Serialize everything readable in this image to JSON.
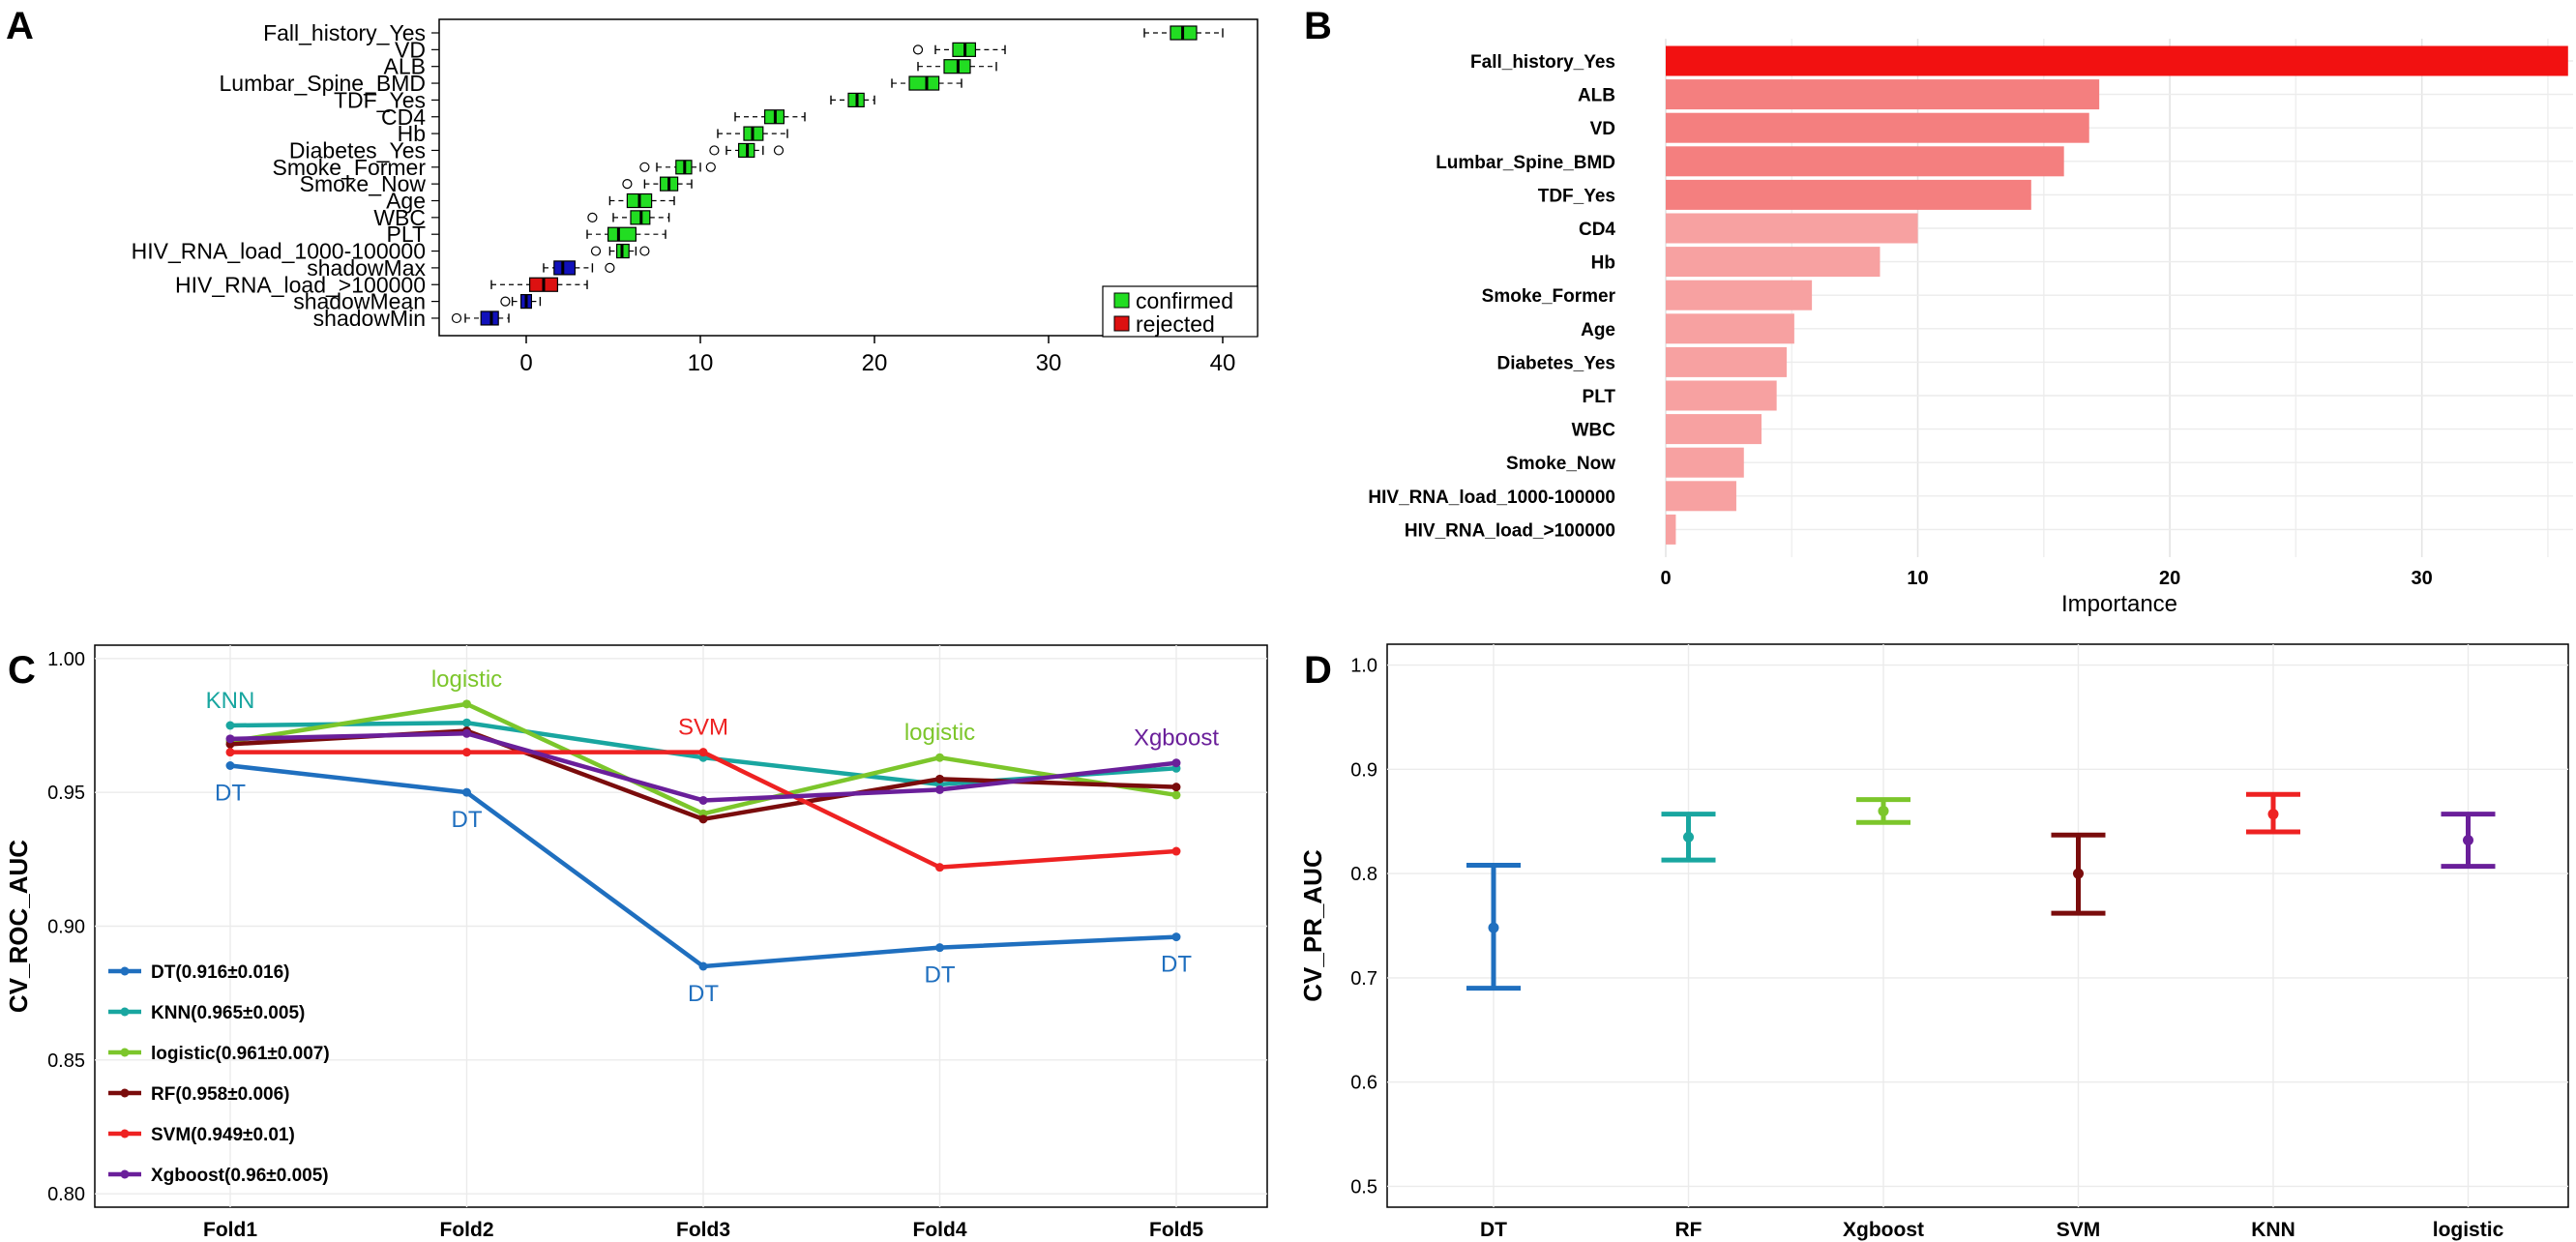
{
  "chart_data": [
    {
      "panel": "A",
      "type": "boxplot",
      "xlim": [
        -5,
        42
      ],
      "xticks": [
        0,
        10,
        20,
        30,
        40
      ],
      "features": [
        {
          "name": "Fall_history_Yes",
          "status": "confirmed",
          "min": 35.5,
          "q1": 37.0,
          "median": 37.7,
          "q3": 38.5,
          "max": 40.0,
          "outliers": []
        },
        {
          "name": "VD",
          "status": "confirmed",
          "min": 23.5,
          "q1": 24.5,
          "median": 25.2,
          "q3": 25.8,
          "max": 27.5,
          "outliers": [
            22.5
          ]
        },
        {
          "name": "ALB",
          "status": "confirmed",
          "min": 22.5,
          "q1": 24.0,
          "median": 24.8,
          "q3": 25.5,
          "max": 27.0,
          "outliers": []
        },
        {
          "name": "Lumbar_Spine_BMD",
          "status": "confirmed",
          "min": 21.0,
          "q1": 22.0,
          "median": 23.0,
          "q3": 23.7,
          "max": 25.0,
          "outliers": []
        },
        {
          "name": "TDF_Yes",
          "status": "confirmed",
          "min": 17.5,
          "q1": 18.5,
          "median": 19.0,
          "q3": 19.4,
          "max": 20.0,
          "outliers": []
        },
        {
          "name": "CD4",
          "status": "confirmed",
          "min": 12.0,
          "q1": 13.7,
          "median": 14.3,
          "q3": 14.8,
          "max": 16.0,
          "outliers": []
        },
        {
          "name": "Hb",
          "status": "confirmed",
          "min": 11.0,
          "q1": 12.5,
          "median": 13.0,
          "q3": 13.6,
          "max": 15.0,
          "outliers": []
        },
        {
          "name": "Diabetes_Yes",
          "status": "confirmed",
          "min": 11.5,
          "q1": 12.2,
          "median": 12.7,
          "q3": 13.1,
          "max": 13.6,
          "outliers": [
            10.8,
            14.5
          ]
        },
        {
          "name": "Smoke_Former",
          "status": "confirmed",
          "min": 7.5,
          "q1": 8.6,
          "median": 9.1,
          "q3": 9.5,
          "max": 10.0,
          "outliers": [
            6.8,
            10.6
          ]
        },
        {
          "name": "Smoke_Now",
          "status": "confirmed",
          "min": 6.8,
          "q1": 7.7,
          "median": 8.2,
          "q3": 8.7,
          "max": 9.5,
          "outliers": [
            5.8
          ]
        },
        {
          "name": "Age",
          "status": "confirmed",
          "min": 4.8,
          "q1": 5.8,
          "median": 6.5,
          "q3": 7.2,
          "max": 8.5,
          "outliers": []
        },
        {
          "name": "WBC",
          "status": "confirmed",
          "min": 5.0,
          "q1": 6.0,
          "median": 6.6,
          "q3": 7.1,
          "max": 8.2,
          "outliers": [
            3.8
          ]
        },
        {
          "name": "PLT",
          "status": "confirmed",
          "min": 3.5,
          "q1": 4.7,
          "median": 5.3,
          "q3": 6.3,
          "max": 8.0,
          "outliers": []
        },
        {
          "name": "HIV_RNA_load_1000-100000",
          "status": "confirmed",
          "min": 4.8,
          "q1": 5.2,
          "median": 5.5,
          "q3": 5.9,
          "max": 6.3,
          "outliers": [
            4.0,
            6.8
          ]
        },
        {
          "name": "shadowMax",
          "status": "shadow",
          "min": 1.0,
          "q1": 1.6,
          "median": 2.1,
          "q3": 2.8,
          "max": 3.8,
          "outliers": [
            4.8
          ]
        },
        {
          "name": "HIV_RNA_load_>100000",
          "status": "rejected",
          "min": -2.0,
          "q1": 0.2,
          "median": 1.0,
          "q3": 1.8,
          "max": 3.5,
          "outliers": []
        },
        {
          "name": "shadowMean",
          "status": "shadow",
          "min": -0.8,
          "q1": -0.3,
          "median": 0.0,
          "q3": 0.3,
          "max": 0.8,
          "outliers": [
            -1.2
          ]
        },
        {
          "name": "shadowMin",
          "status": "shadow",
          "min": -3.5,
          "q1": -2.6,
          "median": -2.0,
          "q3": -1.6,
          "max": -1.0,
          "outliers": [
            -4.0
          ]
        }
      ],
      "legend": [
        "confirmed",
        "rejected"
      ],
      "colors": {
        "confirmed": "#22dd22",
        "rejected": "#dd1111",
        "shadow": "#1111bb"
      }
    },
    {
      "panel": "B",
      "type": "bar",
      "orientation": "horizontal",
      "xlabel": "Importance",
      "xlim": [
        0,
        36
      ],
      "xticks": [
        0,
        10,
        20,
        30
      ],
      "categories": [
        "Fall_history_Yes",
        "ALB",
        "VD",
        "Lumbar_Spine_BMD",
        "TDF_Yes",
        "CD4",
        "Hb",
        "Smoke_Former",
        "Age",
        "Diabetes_Yes",
        "PLT",
        "WBC",
        "Smoke_Now",
        "HIV_RNA_load_1000-100000",
        "HIV_RNA_load_>100000"
      ],
      "values": [
        35.8,
        17.2,
        16.8,
        15.8,
        14.5,
        10.0,
        8.5,
        5.8,
        5.1,
        4.8,
        4.4,
        3.8,
        3.1,
        2.8,
        0.4
      ],
      "colors": [
        "#f21111",
        "#f47f7f",
        "#f47f7f",
        "#f47f7f",
        "#f47f7f",
        "#f7a1a1",
        "#f7a1a1",
        "#f7a1a1",
        "#f7a1a1",
        "#f7a1a1",
        "#f7a1a1",
        "#f7a1a1",
        "#f7a1a1",
        "#f7a1a1",
        "#f7a1a1"
      ]
    },
    {
      "panel": "C",
      "type": "line",
      "ylabel": "CV_ROC_AUC",
      "ylim": [
        0.795,
        1.005
      ],
      "yticks": [
        "0.80",
        "0.85",
        "0.90",
        "0.95",
        "1.00"
      ],
      "categories": [
        "Fold1",
        "Fold2",
        "Fold3",
        "Fold4",
        "Fold5"
      ],
      "series": [
        {
          "name": "DT",
          "legend": "DT(0.916±0.016)",
          "color": "#1f6fbf",
          "values": [
            0.96,
            0.95,
            0.885,
            0.892,
            0.896
          ]
        },
        {
          "name": "KNN",
          "legend": "KNN(0.965±0.005)",
          "color": "#19a6a0",
          "values": [
            0.975,
            0.976,
            0.963,
            0.953,
            0.959
          ]
        },
        {
          "name": "logistic",
          "legend": "logistic(0.961±0.007)",
          "color": "#7cc62b",
          "values": [
            0.969,
            0.983,
            0.942,
            0.963,
            0.949
          ]
        },
        {
          "name": "RF",
          "legend": "RF(0.958±0.006)",
          "color": "#7a0c0c",
          "values": [
            0.968,
            0.973,
            0.94,
            0.955,
            0.952
          ]
        },
        {
          "name": "SVM",
          "legend": "SVM(0.949±0.01)",
          "color": "#ee2222",
          "values": [
            0.965,
            0.965,
            0.965,
            0.922,
            0.928
          ]
        },
        {
          "name": "Xgboost",
          "legend": "Xgboost(0.96±0.005)",
          "color": "#6a1f9a",
          "values": [
            0.97,
            0.972,
            0.947,
            0.951,
            0.961
          ]
        }
      ],
      "annotations": [
        {
          "text": "KNN",
          "series": "KNN",
          "fold": 0,
          "pos": "above"
        },
        {
          "text": "logistic",
          "series": "logistic",
          "fold": 1,
          "pos": "above"
        },
        {
          "text": "SVM",
          "series": "SVM",
          "fold": 2,
          "pos": "above"
        },
        {
          "text": "logistic",
          "series": "logistic",
          "fold": 3,
          "pos": "above"
        },
        {
          "text": "Xgboost",
          "series": "Xgboost",
          "fold": 4,
          "pos": "above"
        },
        {
          "text": "DT",
          "series": "DT",
          "fold": 0,
          "pos": "below"
        },
        {
          "text": "DT",
          "series": "DT",
          "fold": 1,
          "pos": "below"
        },
        {
          "text": "DT",
          "series": "DT",
          "fold": 2,
          "pos": "below"
        },
        {
          "text": "DT",
          "series": "DT",
          "fold": 3,
          "pos": "below"
        },
        {
          "text": "DT",
          "series": "DT",
          "fold": 4,
          "pos": "below"
        }
      ]
    },
    {
      "panel": "D",
      "type": "errorbar",
      "ylabel": "CV_PR_AUC",
      "ylim": [
        0.48,
        1.02
      ],
      "yticks": [
        "0.5",
        "0.6",
        "0.7",
        "0.8",
        "0.9",
        "1.0"
      ],
      "categories": [
        "DT",
        "RF",
        "Xgboost",
        "SVM",
        "KNN",
        "logistic"
      ],
      "means": [
        0.748,
        0.835,
        0.86,
        0.8,
        0.857,
        0.832
      ],
      "lower": [
        0.69,
        0.813,
        0.849,
        0.762,
        0.84,
        0.807
      ],
      "upper": [
        0.808,
        0.857,
        0.871,
        0.837,
        0.876,
        0.857
      ],
      "colors": [
        "#1f6fbf",
        "#19a6a0",
        "#7cc62b",
        "#7a0c0c",
        "#ee2222",
        "#6a1f9a"
      ]
    }
  ],
  "panels": {
    "a": "A",
    "b": "B",
    "c": "C",
    "d": "D"
  }
}
